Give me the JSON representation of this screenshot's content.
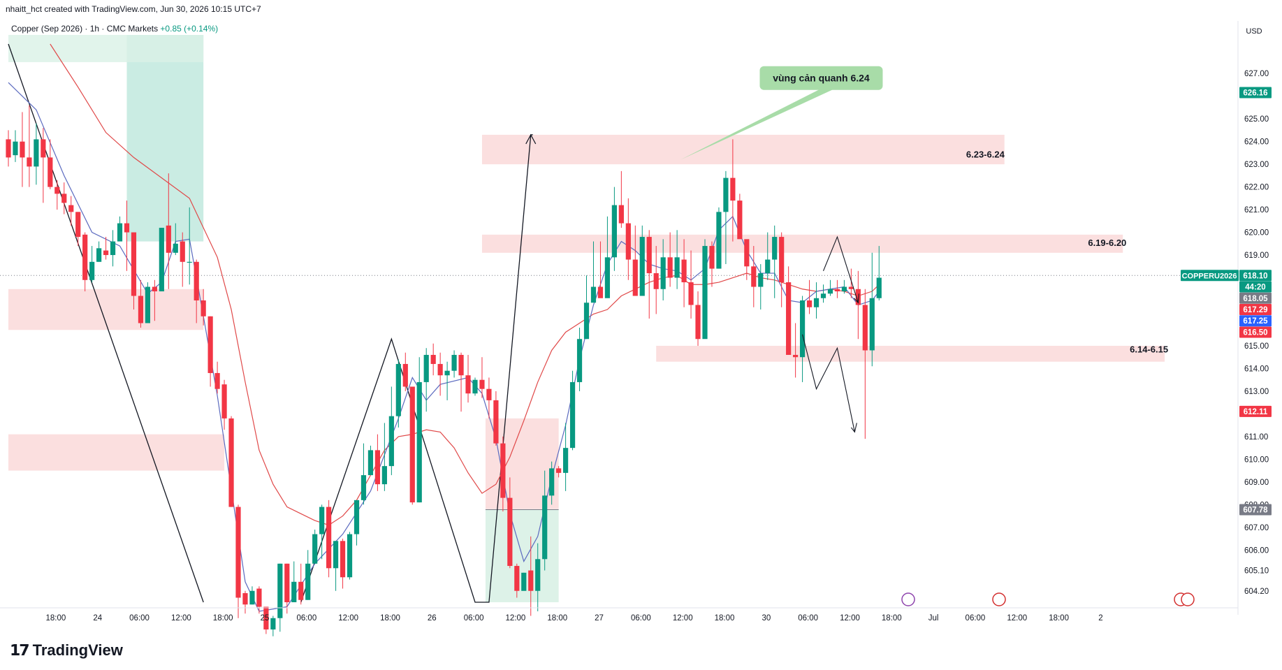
{
  "header": {
    "created_by": "nhaitt_hct created with TradingView.com, Jun 30, 2026 10:15 UTC+7",
    "symbol": "Copper (Sep 2026) · 1h · CMC Markets",
    "change": "+0.85 (+0.14%)"
  },
  "brand": {
    "name": "TradingView",
    "logo_glyph": "𝟭𝟳"
  },
  "colors": {
    "up": "#089981",
    "down": "#f23645",
    "zone": "#fbdcdc",
    "target_green": "#b8e6da",
    "sma_fast": "#5b6abf",
    "sma_slow": "#e04848"
  },
  "chart_data": {
    "type": "candlestick",
    "currency": "USD",
    "ylim": [
      603.7,
      628.7
    ],
    "y_ticks": [
      604.2,
      605.1,
      606.0,
      607.0,
      608.0,
      609.0,
      610.0,
      611.0,
      613.0,
      614.0,
      615.0,
      619.0,
      620.0,
      621.0,
      622.0,
      623.0,
      624.0,
      625.0,
      627.0
    ],
    "x_ticks": [
      {
        "label": "18:00",
        "i": 3
      },
      {
        "label": "24",
        "i": 9
      },
      {
        "label": "06:00",
        "i": 15
      },
      {
        "label": "12:00",
        "i": 21
      },
      {
        "label": "18:00",
        "i": 27
      },
      {
        "label": "25",
        "i": 33
      },
      {
        "label": "06:00",
        "i": 39
      },
      {
        "label": "12:00",
        "i": 45
      },
      {
        "label": "18:00",
        "i": 51
      },
      {
        "label": "26",
        "i": 57
      },
      {
        "label": "06:00",
        "i": 63
      },
      {
        "label": "12:00",
        "i": 69
      },
      {
        "label": "18:00",
        "i": 75
      },
      {
        "label": "27",
        "i": 81
      },
      {
        "label": "06:00",
        "i": 87
      },
      {
        "label": "12:00",
        "i": 93
      },
      {
        "label": "18:00",
        "i": 99
      },
      {
        "label": "30",
        "i": 105
      },
      {
        "label": "06:00",
        "i": 111
      },
      {
        "label": "12:00",
        "i": 117
      },
      {
        "label": "18:00",
        "i": 123
      },
      {
        "label": "Jul",
        "i": 129
      },
      {
        "label": "06:00",
        "i": 135
      },
      {
        "label": "12:00",
        "i": 141
      },
      {
        "label": "18:00",
        "i": 147
      },
      {
        "label": "2",
        "i": 153
      }
    ],
    "candles": [
      [
        624.1,
        623.3,
        624.5,
        622.9
      ],
      [
        623.4,
        624.0,
        624.5,
        623.1
      ],
      [
        624.0,
        623.3,
        625.3,
        622.0
      ],
      [
        623.3,
        622.9,
        625.6,
        622.0
      ],
      [
        622.9,
        624.1,
        624.8,
        622.1
      ],
      [
        624.1,
        623.3,
        624.6,
        621.3
      ],
      [
        623.3,
        622.0,
        624.1,
        621.9
      ],
      [
        622.0,
        621.7,
        622.3,
        621.0
      ],
      [
        621.7,
        621.3,
        622.2,
        620.8
      ],
      [
        621.2,
        620.9,
        621.6,
        620.3
      ],
      [
        620.9,
        619.8,
        620.9,
        619.4
      ],
      [
        619.9,
        617.9,
        620.0,
        617.4
      ],
      [
        617.9,
        618.7,
        619.4,
        617.8
      ],
      [
        618.7,
        619.3,
        619.6,
        618.7
      ],
      [
        619.2,
        619.0,
        619.8,
        618.8
      ],
      [
        619.0,
        619.6,
        620.1,
        618.5
      ],
      [
        619.6,
        620.4,
        620.7,
        619.9
      ],
      [
        620.4,
        620.0,
        621.4,
        618.3
      ],
      [
        620.0,
        617.2,
        620.0,
        616.6
      ],
      [
        617.2,
        616.0,
        617.9,
        615.8
      ],
      [
        616.0,
        617.6,
        617.8,
        616.0
      ],
      [
        617.6,
        617.4,
        617.9,
        616.1
      ],
      [
        617.4,
        620.2,
        620.2,
        617.5
      ],
      [
        620.3,
        619.1,
        622.6,
        617.5
      ],
      [
        619.1,
        619.5,
        620.4,
        619.0
      ],
      [
        619.6,
        618.7,
        620.0,
        617.6
      ],
      [
        618.7,
        618.7,
        621.1,
        617.7
      ],
      [
        618.7,
        617.0,
        618.8,
        616.0
      ],
      [
        617.0,
        616.3,
        617.5,
        615.9
      ],
      [
        616.3,
        613.8,
        616.3,
        613.2
      ],
      [
        613.8,
        613.1,
        614.3,
        612.9
      ],
      [
        613.3,
        611.8,
        613.5,
        611.3
      ],
      [
        611.8,
        607.9,
        611.9,
        607.9
      ],
      [
        607.9,
        603.9,
        608.0,
        603.0
      ],
      [
        604.1,
        603.6,
        604.2,
        603.2
      ],
      [
        603.6,
        604.2,
        604.4,
        603.6
      ],
      [
        604.3,
        603.5,
        604.4,
        603.2
      ],
      [
        603.5,
        602.5,
        602.7,
        602.3
      ],
      [
        602.5,
        603.0,
        603.1,
        602.2
      ],
      [
        603.0,
        605.4,
        605.4,
        602.4
      ],
      [
        605.4,
        603.7,
        605.4,
        603.2
      ],
      [
        603.7,
        604.6,
        605.5,
        603.7
      ],
      [
        604.6,
        603.8,
        605.4,
        603.6
      ],
      [
        603.8,
        605.4,
        606.0,
        603.8
      ],
      [
        605.4,
        606.7,
        606.9,
        605.4
      ],
      [
        606.7,
        607.9,
        608.0,
        605.6
      ],
      [
        607.9,
        605.2,
        608.2,
        604.8
      ],
      [
        605.2,
        606.4,
        606.4,
        604.2
      ],
      [
        606.4,
        604.8,
        606.5,
        604.3
      ],
      [
        604.8,
        606.7,
        606.8,
        604.7
      ],
      [
        606.7,
        608.2,
        608.2,
        606.2
      ],
      [
        608.2,
        609.3,
        610.7,
        608.0
      ],
      [
        609.3,
        610.4,
        610.6,
        609.5
      ],
      [
        610.4,
        608.9,
        611.1,
        608.6
      ],
      [
        608.9,
        609.7,
        611.6,
        608.6
      ],
      [
        609.7,
        611.9,
        613.2,
        609.3
      ],
      [
        611.9,
        614.2,
        614.4,
        611.4
      ],
      [
        614.2,
        613.2,
        614.7,
        613.0
      ],
      [
        613.2,
        608.1,
        613.2,
        608.0
      ],
      [
        608.1,
        613.4,
        614.5,
        608.1
      ],
      [
        613.4,
        614.6,
        614.9,
        612.1
      ],
      [
        614.6,
        614.2,
        615.1,
        613.7
      ],
      [
        614.2,
        613.7,
        614.7,
        612.8
      ],
      [
        613.7,
        613.9,
        614.3,
        612.6
      ],
      [
        613.9,
        614.6,
        614.8,
        613.6
      ],
      [
        614.6,
        613.7,
        614.7,
        612.1
      ],
      [
        613.7,
        612.9,
        614.6,
        612.5
      ],
      [
        612.9,
        613.5,
        613.6,
        612.8
      ],
      [
        613.5,
        613.1,
        614.5,
        612.7
      ],
      [
        613.1,
        612.6,
        613.6,
        611.8
      ],
      [
        612.6,
        610.7,
        613.0,
        610.6
      ],
      [
        610.7,
        608.3,
        611.0,
        607.7
      ],
      [
        608.3,
        605.3,
        609.2,
        605.2
      ],
      [
        605.3,
        604.2,
        605.4,
        603.9
      ],
      [
        604.2,
        605.0,
        605.0,
        604.3
      ],
      [
        605.1,
        604.2,
        606.6,
        603.1
      ],
      [
        604.2,
        605.6,
        606.3,
        603.3
      ],
      [
        605.6,
        608.4,
        609.5,
        605.1
      ],
      [
        608.4,
        609.6,
        609.9,
        608.0
      ],
      [
        609.6,
        609.4,
        609.7,
        609.2
      ],
      [
        609.4,
        610.5,
        611.6,
        608.6
      ],
      [
        610.5,
        613.4,
        613.9,
        610.4
      ],
      [
        613.4,
        615.3,
        615.8,
        613.0
      ],
      [
        615.3,
        616.9,
        618.1,
        615.3
      ],
      [
        616.9,
        617.6,
        619.6,
        617.0
      ],
      [
        617.6,
        617.1,
        619.6,
        617.3
      ],
      [
        617.1,
        618.9,
        620.7,
        617.7
      ],
      [
        618.9,
        621.2,
        622.0,
        618.3
      ],
      [
        621.2,
        620.4,
        622.7,
        620.2
      ],
      [
        620.4,
        618.8,
        621.5,
        617.9
      ],
      [
        618.8,
        617.2,
        620.3,
        617.3
      ],
      [
        617.2,
        619.8,
        620.3,
        618.5
      ],
      [
        619.8,
        618.2,
        620.1,
        616.2
      ],
      [
        618.2,
        617.5,
        619.4,
        616.4
      ],
      [
        617.5,
        618.9,
        619.7,
        617.0
      ],
      [
        618.9,
        618.0,
        620.0,
        617.6
      ],
      [
        618.0,
        618.9,
        620.1,
        617.5
      ],
      [
        618.8,
        617.8,
        619.7,
        616.7
      ],
      [
        617.8,
        616.8,
        619.2,
        616.2
      ],
      [
        616.8,
        615.3,
        617.4,
        615.0
      ],
      [
        615.3,
        619.4,
        619.7,
        615.7
      ],
      [
        619.4,
        618.4,
        619.6,
        617.6
      ],
      [
        618.4,
        620.9,
        621.1,
        618.4
      ],
      [
        620.9,
        622.4,
        622.7,
        618.6
      ],
      [
        622.4,
        621.4,
        624.1,
        619.6
      ],
      [
        621.4,
        619.7,
        621.7,
        619.8
      ],
      [
        619.7,
        618.5,
        619.6,
        617.9
      ],
      [
        618.5,
        617.6,
        619.4,
        616.7
      ],
      [
        617.6,
        618.2,
        618.6,
        616.6
      ],
      [
        618.2,
        618.8,
        620.0,
        617.9
      ],
      [
        618.8,
        619.8,
        620.3,
        617.1
      ],
      [
        619.8,
        617.8,
        620.0,
        616.7
      ],
      [
        617.8,
        614.6,
        618.5,
        614.6
      ],
      [
        614.6,
        614.5,
        616.0,
        613.6
      ],
      [
        614.5,
        617.0,
        617.2,
        613.4
      ],
      [
        617.0,
        616.7,
        617.9,
        616.4
      ],
      [
        616.7,
        617.1,
        617.8,
        616.2
      ],
      [
        617.1,
        617.3,
        617.7,
        616.9
      ],
      [
        617.3,
        617.5,
        617.9,
        617.2
      ],
      [
        617.5,
        617.4,
        617.9,
        617.1
      ],
      [
        617.4,
        617.6,
        617.9,
        617.3
      ],
      [
        617.6,
        617.5,
        618.4,
        617.1
      ],
      [
        617.5,
        616.8,
        618.3,
        615.3
      ],
      [
        616.8,
        614.8,
        617.5,
        610.9
      ],
      [
        614.8,
        617.1,
        619.1,
        614.1
      ],
      [
        617.1,
        618.0,
        619.4,
        617.0
      ]
    ],
    "sma_fast": [
      [
        0,
        626.6
      ],
      [
        4,
        625.4
      ],
      [
        8,
        622.5
      ],
      [
        12,
        620.0
      ],
      [
        16,
        619.4
      ],
      [
        20,
        617.3
      ],
      [
        22,
        617.8
      ],
      [
        24,
        619.6
      ],
      [
        26,
        619.7
      ],
      [
        28,
        616.3
      ],
      [
        30,
        612.8
      ],
      [
        32,
        608.7
      ],
      [
        34,
        604.6
      ],
      [
        36,
        603.3
      ],
      [
        40,
        603.5
      ],
      [
        44,
        605.4
      ],
      [
        48,
        606.7
      ],
      [
        52,
        608.6
      ],
      [
        56,
        611.8
      ],
      [
        58,
        613.6
      ],
      [
        60,
        612.6
      ],
      [
        62,
        613.3
      ],
      [
        66,
        613.6
      ],
      [
        68,
        612.9
      ],
      [
        70,
        610.9
      ],
      [
        72,
        607.6
      ],
      [
        74,
        605.5
      ],
      [
        76,
        606.6
      ],
      [
        78,
        609.2
      ],
      [
        80,
        611.5
      ],
      [
        82,
        614.4
      ],
      [
        84,
        616.8
      ],
      [
        86,
        618.6
      ],
      [
        88,
        619.6
      ],
      [
        90,
        619.2
      ],
      [
        92,
        618.6
      ],
      [
        94,
        618.4
      ],
      [
        96,
        618.3
      ],
      [
        98,
        617.9
      ],
      [
        100,
        618.4
      ],
      [
        102,
        620.1
      ],
      [
        104,
        620.7
      ],
      [
        106,
        619.2
      ],
      [
        108,
        618.2
      ],
      [
        110,
        618.2
      ],
      [
        112,
        617.0
      ],
      [
        114,
        616.9
      ],
      [
        116,
        617.4
      ],
      [
        118,
        617.5
      ],
      [
        120,
        617.6
      ],
      [
        122,
        616.8
      ],
      [
        124,
        617.0
      ],
      [
        125,
        617.4
      ]
    ],
    "sma_slow": [
      [
        6,
        628.3
      ],
      [
        10,
        626.4
      ],
      [
        14,
        624.4
      ],
      [
        18,
        623.3
      ],
      [
        22,
        622.4
      ],
      [
        26,
        621.5
      ],
      [
        30,
        618.9
      ],
      [
        32,
        616.6
      ],
      [
        34,
        613.4
      ],
      [
        36,
        610.4
      ],
      [
        38,
        608.9
      ],
      [
        40,
        607.9
      ],
      [
        42,
        607.6
      ],
      [
        44,
        607.3
      ],
      [
        46,
        607.1
      ],
      [
        48,
        607.5
      ],
      [
        50,
        608.2
      ],
      [
        52,
        609.3
      ],
      [
        54,
        610.4
      ],
      [
        56,
        611.0
      ],
      [
        58,
        611.1
      ],
      [
        60,
        611.3
      ],
      [
        62,
        611.2
      ],
      [
        64,
        610.5
      ],
      [
        66,
        609.4
      ],
      [
        68,
        608.5
      ],
      [
        70,
        608.9
      ],
      [
        72,
        610.1
      ],
      [
        74,
        611.7
      ],
      [
        76,
        613.4
      ],
      [
        78,
        614.8
      ],
      [
        80,
        615.6
      ],
      [
        82,
        616.0
      ],
      [
        84,
        616.4
      ],
      [
        86,
        616.6
      ],
      [
        88,
        617.2
      ],
      [
        90,
        617.5
      ],
      [
        92,
        617.8
      ],
      [
        94,
        618.0
      ],
      [
        96,
        618.1
      ],
      [
        98,
        617.7
      ],
      [
        100,
        617.7
      ],
      [
        102,
        617.8
      ],
      [
        104,
        618.0
      ],
      [
        106,
        618.2
      ],
      [
        108,
        618.0
      ],
      [
        110,
        617.9
      ],
      [
        112,
        617.7
      ],
      [
        114,
        617.5
      ],
      [
        116,
        617.4
      ],
      [
        118,
        617.5
      ],
      [
        120,
        617.4
      ],
      [
        122,
        617.2
      ],
      [
        124,
        617.4
      ],
      [
        125,
        617.7
      ]
    ],
    "zones": [
      {
        "label": "6.23-6.24",
        "i0": 68,
        "i1": 143,
        "top": 624.3,
        "bottom": 623.0,
        "label_i": 137.5,
        "label_y": 623.3
      },
      {
        "label": "6.19-6.20",
        "i0": 68,
        "i1": 160,
        "top": 619.9,
        "bottom": 619.1,
        "label_i": 155,
        "label_y": 619.4
      },
      {
        "label": "6.14-6.15",
        "i0": 93,
        "i1": 166,
        "top": 615.0,
        "bottom": 614.3,
        "label_i": 161,
        "label_y": 614.7
      },
      {
        "label": "",
        "i0": 0,
        "i1": 28,
        "top": 617.5,
        "bottom": 615.7,
        "label_i": 0,
        "label_y": 0
      },
      {
        "label": "",
        "i0": 0,
        "i1": 31,
        "top": 611.1,
        "bottom": 609.5,
        "label_i": 0,
        "label_y": 0
      }
    ],
    "callout": {
      "text": "vùng cản quanh 6.24",
      "i": 117.5,
      "y": 626.8
    },
    "price_labels": [
      {
        "value": "626.16",
        "y": 626.16,
        "color": "#089981"
      },
      {
        "value": "618.10",
        "y": 618.1,
        "color": "#089981"
      },
      {
        "value": "44:20",
        "y": 617.6,
        "color": "#089981"
      },
      {
        "value": "618.05",
        "y": 617.1,
        "color": "#787b86"
      },
      {
        "value": "617.29",
        "y": 616.6,
        "color": "#f23645"
      },
      {
        "value": "617.25",
        "y": 616.1,
        "color": "#2962ff"
      },
      {
        "value": "616.50",
        "y": 615.6,
        "color": "#f23645"
      },
      {
        "value": "612.11",
        "y": 612.11,
        "color": "#f23645"
      },
      {
        "value": "607.78",
        "y": 607.78,
        "color": "#787b86"
      }
    ],
    "symbol_tag": "COPPERU2026"
  }
}
